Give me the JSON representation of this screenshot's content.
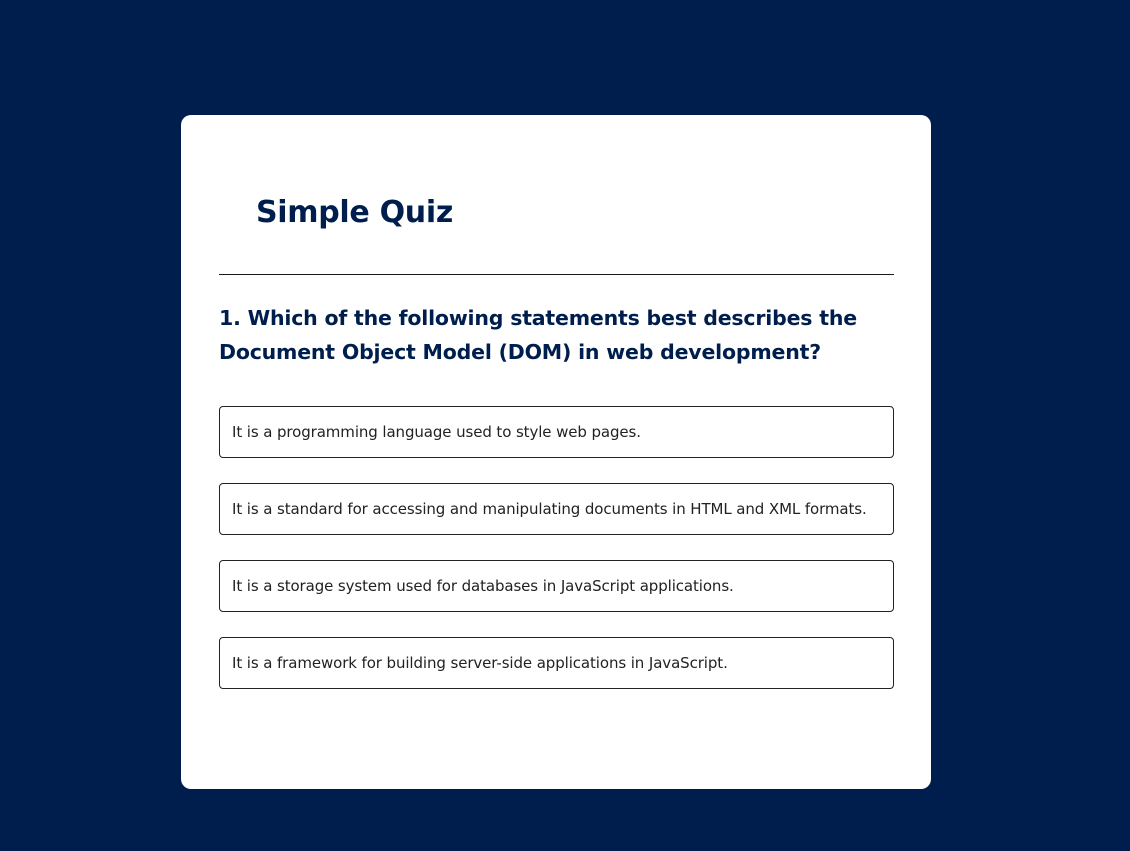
{
  "quiz": {
    "title": "Simple Quiz",
    "question": "1. Which of the following statements best describes the Document Object Model (DOM) in web development?",
    "answers": [
      "It is a programming language used to style web pages.",
      "It is a standard for accessing and manipulating documents in HTML and XML formats.",
      "It is a storage system used for databases in JavaScript applications.",
      "It is a framework for building server-side applications in JavaScript."
    ]
  },
  "colors": {
    "background": "#001e4d",
    "card": "#ffffff",
    "title": "#001e4d",
    "answer_text": "#222222",
    "answer_border": "#222222"
  }
}
